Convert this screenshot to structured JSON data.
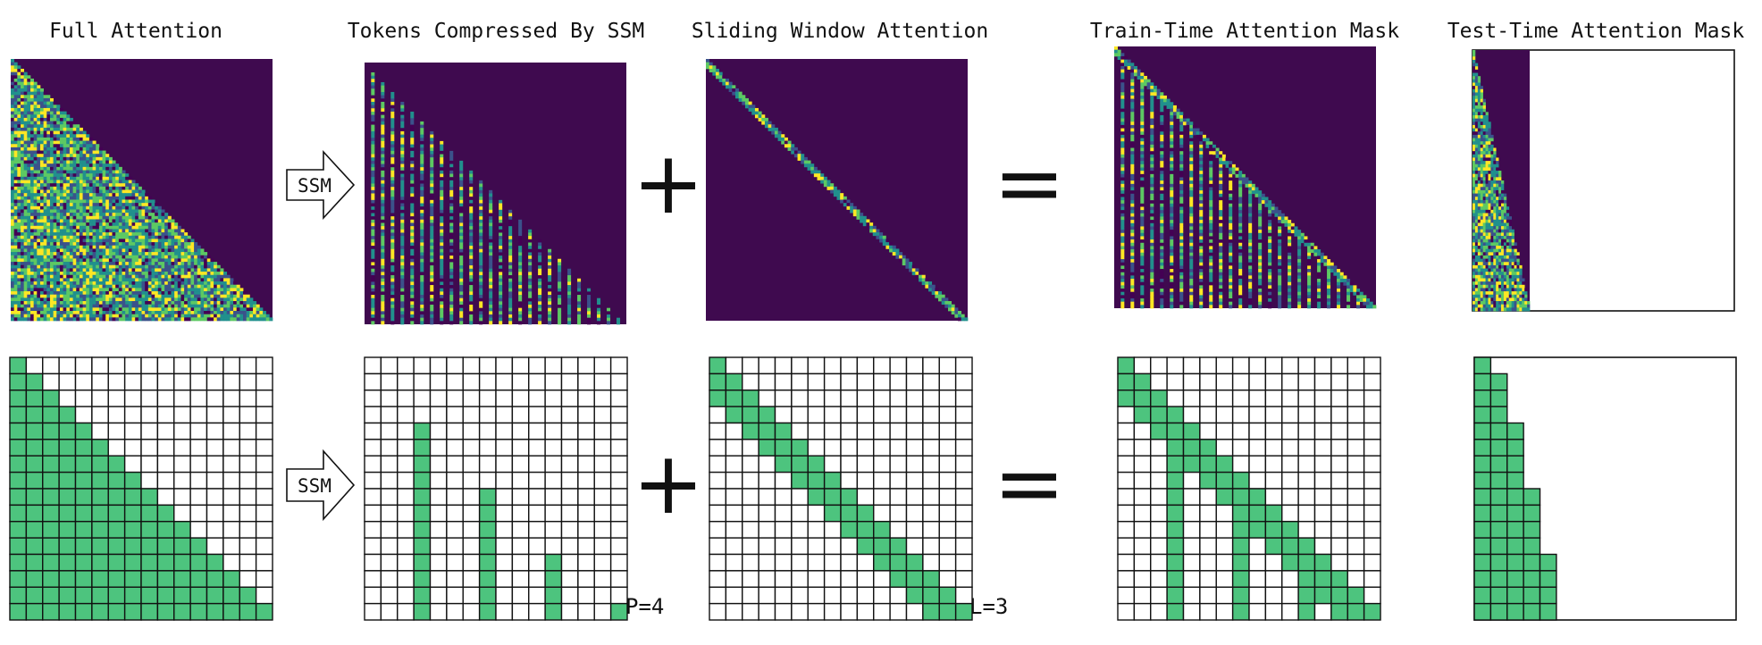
{
  "titles": {
    "full_attention": "Full Attention",
    "ssm_tokens": "Tokens Compressed By SSM",
    "sliding_window": "Sliding Window Attention",
    "train_mask": "Train-Time Attention Mask",
    "test_mask": "Test-Time Attention Mask"
  },
  "operators": {
    "ssm_label": "SSM",
    "plus": "+",
    "equals": "="
  },
  "params": {
    "p_label": "P=4",
    "l_label": "L=3",
    "period": 4,
    "window": 3,
    "grid_size": 16,
    "heat_size": 80
  },
  "colors": {
    "mask_fill": "#4dc47e",
    "heat_background": "#3f0a4f",
    "grid_line": "#111111",
    "viridis": [
      "#440154",
      "#3b528b",
      "#21908d",
      "#5dc963",
      "#fde725"
    ]
  }
}
